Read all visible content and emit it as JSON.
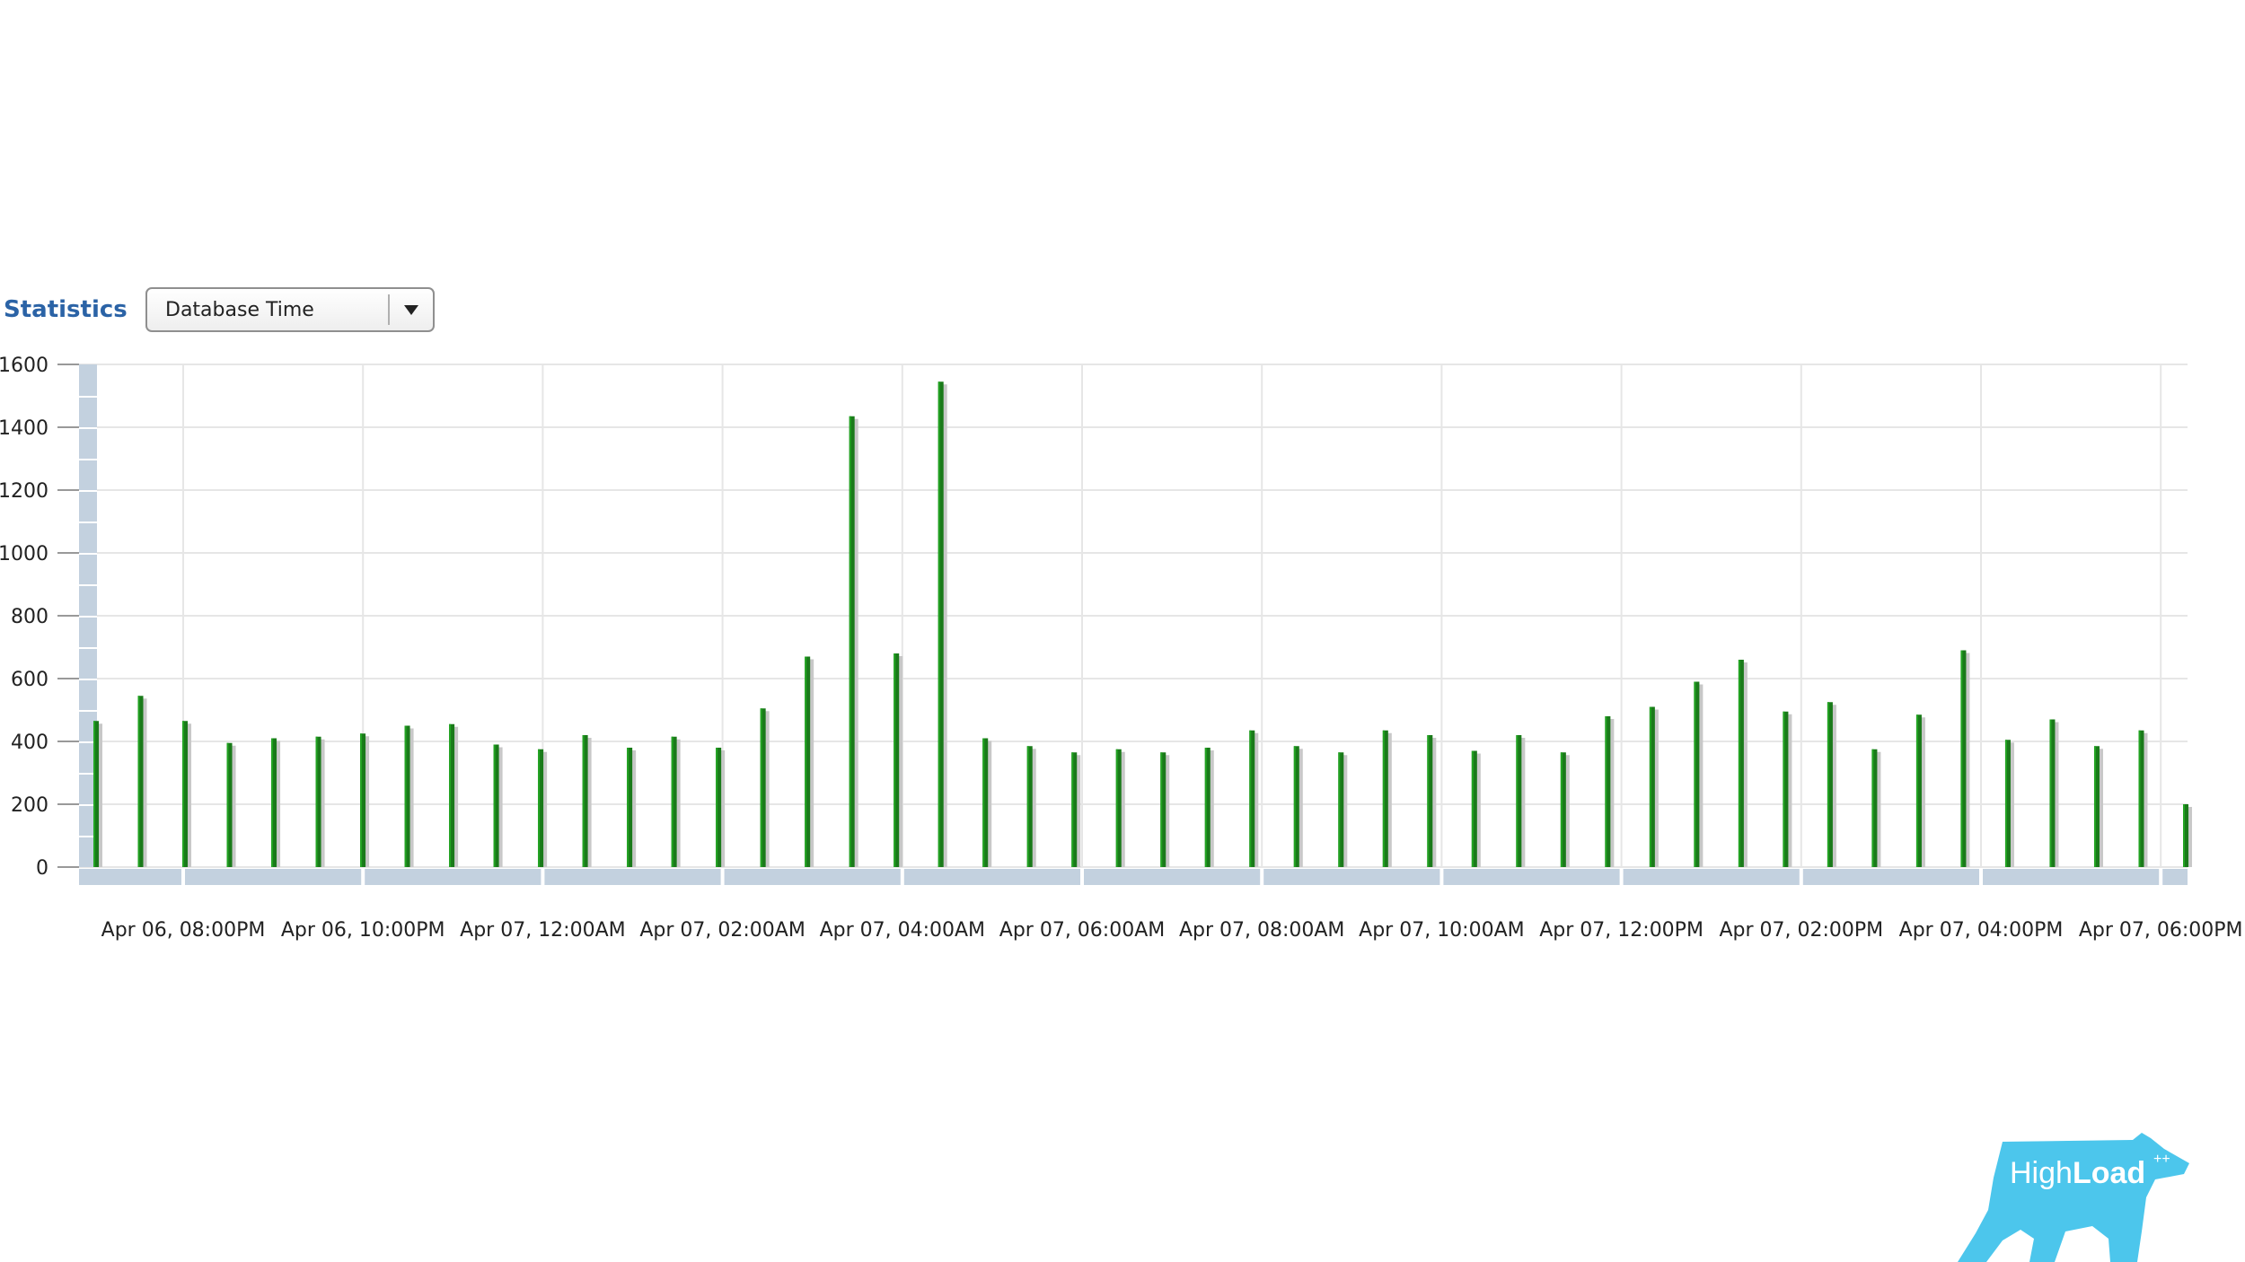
{
  "toolbar": {
    "statistics_label": "Statistics",
    "metric_select": {
      "selected": "Database Time",
      "icon": "chevron-down-icon"
    }
  },
  "logo": {
    "text_main": "High",
    "text_bold": "Load",
    "superscript": "++",
    "color": "#4cc6ec"
  },
  "chart_data": {
    "type": "bar",
    "series": [
      {
        "values": [
          465,
          545,
          465,
          395,
          410,
          415,
          425,
          450,
          455,
          390,
          375,
          420,
          380,
          415,
          380,
          505,
          670,
          1435,
          680,
          1545,
          410,
          385,
          365,
          375,
          365,
          380,
          435,
          385,
          365,
          435,
          420,
          370,
          420,
          365,
          480,
          510,
          590,
          660,
          495,
          525,
          375,
          485,
          690,
          405,
          470,
          385,
          435,
          200
        ]
      }
    ],
    "x_tick_labels": [
      "Apr 06, 08:00PM",
      "Apr 06, 10:00PM",
      "Apr 07, 12:00AM",
      "Apr 07, 02:00AM",
      "Apr 07, 04:00AM",
      "Apr 07, 06:00AM",
      "Apr 07, 08:00AM",
      "Apr 07, 10:00AM",
      "Apr 07, 12:00PM",
      "Apr 07, 02:00PM",
      "Apr 07, 04:00PM",
      "Apr 07, 06:00PM"
    ],
    "y_ticks": [
      0,
      200,
      400,
      600,
      800,
      1000,
      1200,
      1400,
      1600
    ],
    "ylim": [
      0,
      1600
    ],
    "grid": true,
    "colors": {
      "bar": "#1a7a1a",
      "bar_highlight": "#22a322",
      "axis_band": "#c3d1df",
      "grid": "#e6e6e6"
    }
  }
}
